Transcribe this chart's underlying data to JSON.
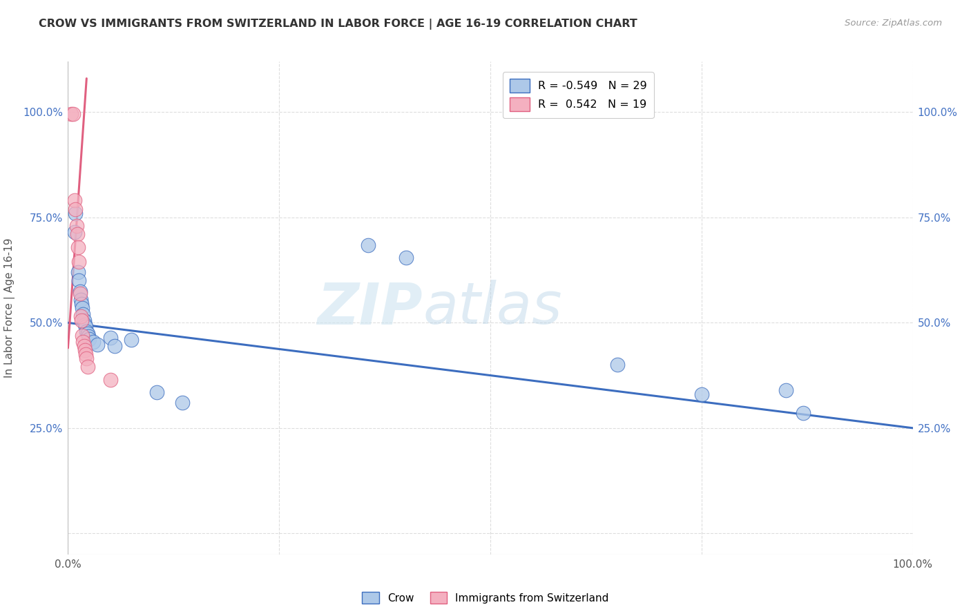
{
  "title": "CROW VS IMMIGRANTS FROM SWITZERLAND IN LABOR FORCE | AGE 16-19 CORRELATION CHART",
  "source": "Source: ZipAtlas.com",
  "ylabel": "In Labor Force | Age 16-19",
  "xlim": [
    0.0,
    1.0
  ],
  "ylim": [
    -0.05,
    1.12
  ],
  "watermark_text": "ZIP",
  "watermark_text2": "atlas",
  "crow_color": "#adc8e8",
  "swiss_color": "#f4b0c0",
  "crow_line_color": "#3c6dbf",
  "swiss_line_color": "#e06080",
  "crow_scatter": [
    [
      0.008,
      0.715
    ],
    [
      0.009,
      0.76
    ],
    [
      0.012,
      0.62
    ],
    [
      0.013,
      0.6
    ],
    [
      0.014,
      0.575
    ],
    [
      0.015,
      0.555
    ],
    [
      0.016,
      0.545
    ],
    [
      0.017,
      0.535
    ],
    [
      0.018,
      0.52
    ],
    [
      0.019,
      0.505
    ],
    [
      0.02,
      0.495
    ],
    [
      0.021,
      0.49
    ],
    [
      0.022,
      0.48
    ],
    [
      0.023,
      0.475
    ],
    [
      0.024,
      0.468
    ],
    [
      0.025,
      0.462
    ],
    [
      0.03,
      0.455
    ],
    [
      0.035,
      0.448
    ],
    [
      0.05,
      0.465
    ],
    [
      0.055,
      0.445
    ],
    [
      0.075,
      0.46
    ],
    [
      0.105,
      0.335
    ],
    [
      0.135,
      0.31
    ],
    [
      0.355,
      0.685
    ],
    [
      0.4,
      0.655
    ],
    [
      0.65,
      0.4
    ],
    [
      0.75,
      0.33
    ],
    [
      0.85,
      0.34
    ],
    [
      0.87,
      0.285
    ]
  ],
  "swiss_scatter": [
    [
      0.004,
      0.995
    ],
    [
      0.006,
      0.995
    ],
    [
      0.008,
      0.79
    ],
    [
      0.009,
      0.77
    ],
    [
      0.01,
      0.73
    ],
    [
      0.011,
      0.71
    ],
    [
      0.012,
      0.68
    ],
    [
      0.013,
      0.645
    ],
    [
      0.014,
      0.57
    ],
    [
      0.015,
      0.515
    ],
    [
      0.016,
      0.505
    ],
    [
      0.017,
      0.47
    ],
    [
      0.018,
      0.455
    ],
    [
      0.019,
      0.445
    ],
    [
      0.02,
      0.435
    ],
    [
      0.021,
      0.425
    ],
    [
      0.022,
      0.415
    ],
    [
      0.023,
      0.395
    ],
    [
      0.05,
      0.365
    ]
  ],
  "crow_trend_x": [
    0.0,
    1.0
  ],
  "crow_trend_y": [
    0.5,
    0.25
  ],
  "swiss_trend_x": [
    0.0,
    0.022
  ],
  "swiss_trend_y": [
    0.44,
    1.08
  ],
  "grid_ticks": [
    0.0,
    0.25,
    0.5,
    0.75,
    1.0
  ],
  "legend1_label": "R = -0.549   N = 29",
  "legend2_label": "R =  0.542   N = 19",
  "bottom_legend1": "Crow",
  "bottom_legend2": "Immigrants from Switzerland"
}
